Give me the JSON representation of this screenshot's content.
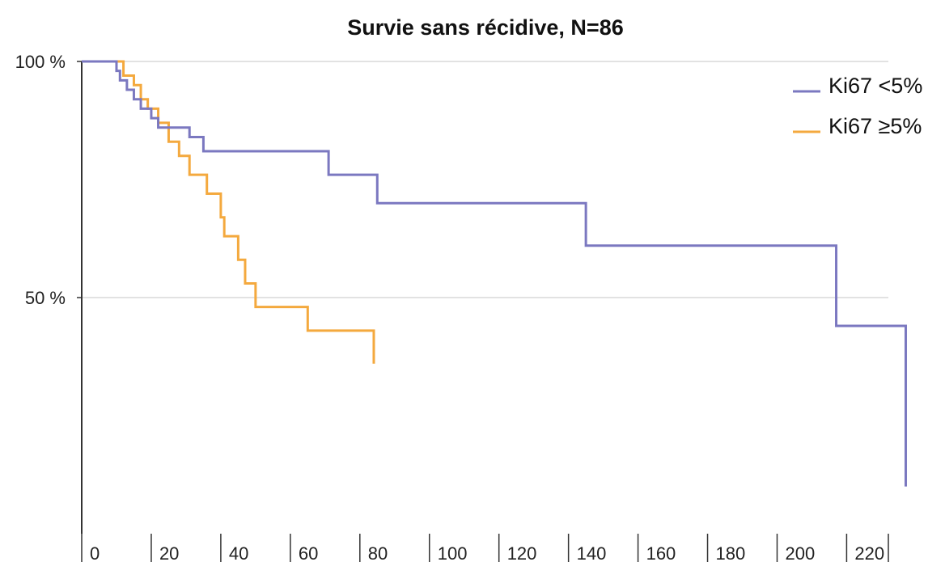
{
  "chart_data": {
    "type": "line",
    "subtype": "step",
    "title": "Survie sans récidive, N=86",
    "xlabel": "",
    "ylabel": "",
    "xlim": [
      0,
      232
    ],
    "ylim": [
      0,
      100
    ],
    "x_ticks": [
      0,
      20,
      40,
      60,
      80,
      100,
      120,
      140,
      160,
      180,
      200,
      220
    ],
    "x_tick_labels": [
      "0",
      "20",
      "40",
      "60",
      "80",
      "100",
      "120",
      "140",
      "160",
      "180",
      "200",
      "220"
    ],
    "y_ticks": [
      50,
      100
    ],
    "y_tick_labels": [
      "50 %",
      "100 %"
    ],
    "grid": "horizontal",
    "legend_position": "top-right",
    "series": [
      {
        "name": "Ki67 <5%",
        "color": "#7b78c0",
        "x": [
          0,
          10,
          11,
          13,
          15,
          17,
          20,
          22,
          24,
          31,
          35,
          59,
          71,
          85,
          145,
          217,
          237
        ],
        "y": [
          100,
          98,
          96,
          94,
          92,
          90,
          88,
          86,
          86,
          84,
          81,
          81,
          76,
          70,
          61,
          44,
          27
        ],
        "end_x": 237,
        "end_y": 10
      },
      {
        "name": "Ki67 ≥5%",
        "color": "#f4a93e",
        "x": [
          0,
          12,
          15,
          17,
          19,
          22,
          25,
          28,
          31,
          33,
          36,
          40,
          41,
          43,
          45,
          47,
          50,
          65,
          84
        ],
        "y": [
          100,
          97,
          95,
          92,
          90,
          87,
          83,
          80,
          76,
          76,
          72,
          67,
          63,
          63,
          58,
          53,
          48,
          43,
          43
        ],
        "end_x": 84,
        "end_y": 36
      }
    ]
  }
}
